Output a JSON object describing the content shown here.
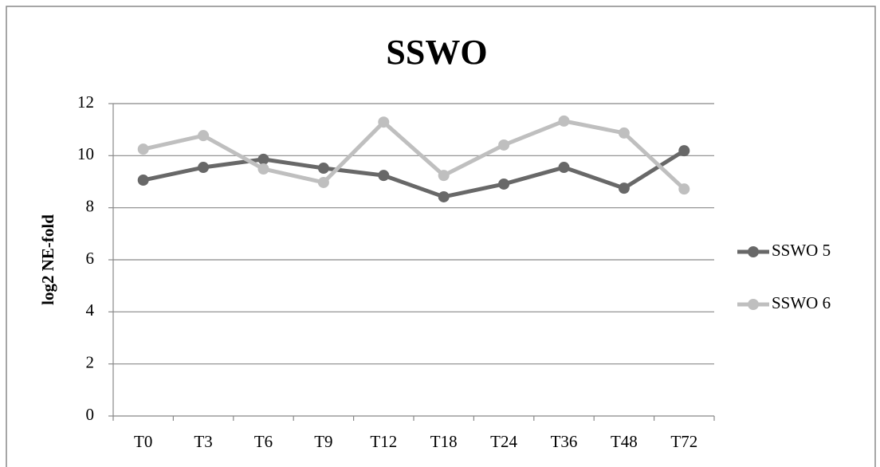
{
  "chart_data": {
    "type": "line",
    "title": "SSWO",
    "y_label": "log2 NE-fold",
    "categories": [
      "T0",
      "T3",
      "T6",
      "T9",
      "T12",
      "T18",
      "T24",
      "T36",
      "T48",
      "T72"
    ],
    "series": [
      {
        "name": "SSWO 5",
        "color": "#686868",
        "values": [
          9.06,
          9.55,
          9.86,
          9.52,
          9.24,
          8.42,
          8.91,
          9.55,
          8.75,
          10.19
        ]
      },
      {
        "name": "SSWO 6",
        "color": "#bfbfbf",
        "values": [
          10.25,
          10.77,
          9.49,
          8.97,
          11.29,
          9.24,
          10.41,
          11.33,
          10.87,
          8.72
        ]
      }
    ],
    "ylim": [
      0,
      12
    ],
    "yticks": [
      0,
      2,
      4,
      6,
      8,
      10,
      12
    ],
    "grid": true,
    "legend": "right"
  }
}
